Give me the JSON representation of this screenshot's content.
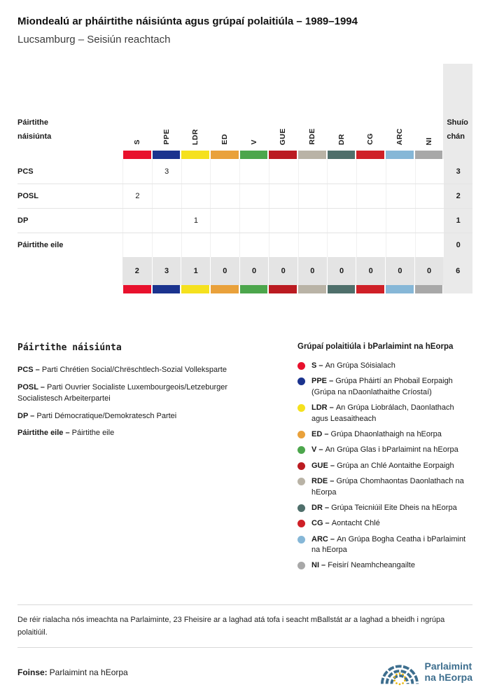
{
  "title": "Miondealú ar pháirtithe náisiúnta agus grúpaí polaitiúla – 1989–1994",
  "subtitle": "Lucsamburg – Seisiún reachtach",
  "table": {
    "row_header_label": "Páirtithe náisiúnta",
    "seats_label": "Shuío​chán",
    "groups": [
      {
        "code": "S",
        "color": "#e8112d",
        "name": "An Grúpa Sóisialach"
      },
      {
        "code": "PPE",
        "color": "#1b338e",
        "name": "Grúpa Pháirtí an Phobail Eorpaigh (Grúpa na nDaonlathaithe Críostaí)"
      },
      {
        "code": "LDR",
        "color": "#f5e11e",
        "name": "An Grúpa Liobrálach, Daonlathach agus Leasaitheach"
      },
      {
        "code": "ED",
        "color": "#e9a13b",
        "name": "Grúpa Dhaonlathaigh na hEorpa"
      },
      {
        "code": "V",
        "color": "#4ca64c",
        "name": "An Grúpa Glas i bParlaimint na hEorpa"
      },
      {
        "code": "GUE",
        "color": "#bb1b21",
        "name": "Grúpa an Chlé Aontaithe Eorpaigh"
      },
      {
        "code": "RDE",
        "color": "#b9b3a6",
        "name": "Grúpa Chomhaontas Daonlathach na hEorpa"
      },
      {
        "code": "DR",
        "color": "#4f6f6b",
        "name": "Grúpa Teicniúil Eite Dheis na hEorpa"
      },
      {
        "code": "CG",
        "color": "#cf2027",
        "name": "Aontacht Chlé"
      },
      {
        "code": "ARC",
        "color": "#86b7d7",
        "name": "An Grúpa Bogha Ceatha i bParlaimint na hEorpa"
      },
      {
        "code": "NI",
        "color": "#a8a8a8",
        "name": "Feisirí Neamhcheangailte"
      }
    ]
  },
  "chart_data": {
    "type": "table",
    "title": "Miondealú ar pháirtithe náisiúnta agus grúpaí polaitiúla – 1989–1994",
    "subtitle": "Lucsamburg – Seisiún reachtach",
    "columns": [
      "S",
      "PPE",
      "LDR",
      "ED",
      "V",
      "GUE",
      "RDE",
      "DR",
      "CG",
      "ARC",
      "NI"
    ],
    "seats_column": "Shuíochán",
    "rows": [
      {
        "label": "PCS",
        "values": [
          0,
          3,
          0,
          0,
          0,
          0,
          0,
          0,
          0,
          0,
          0
        ],
        "total": 3
      },
      {
        "label": "POSL",
        "values": [
          2,
          0,
          0,
          0,
          0,
          0,
          0,
          0,
          0,
          0,
          0
        ],
        "total": 2
      },
      {
        "label": "DP",
        "values": [
          0,
          0,
          1,
          0,
          0,
          0,
          0,
          0,
          0,
          0,
          0
        ],
        "total": 1
      },
      {
        "label": "Páirtithe eile",
        "values": [
          0,
          0,
          0,
          0,
          0,
          0,
          0,
          0,
          0,
          0,
          0
        ],
        "total": 0
      }
    ],
    "totals": [
      2,
      3,
      1,
      0,
      0,
      0,
      0,
      0,
      0,
      0,
      0
    ],
    "grand_total": 6
  },
  "legend_parties": {
    "heading": "Páirtithe náisiúnta",
    "items": [
      {
        "abbr": "PCS",
        "name": "Parti Chrétien Social/Chrëschtlech-Sozial Volleksparte"
      },
      {
        "abbr": "POSL",
        "name": "Parti Ouvrier Socialiste Luxembourgeois/Letzeburger Socialistesch Arbeiterpartei"
      },
      {
        "abbr": "DP",
        "name": "Parti Démocratique/Demokratesch Partei"
      },
      {
        "abbr": "Páirtithe eile",
        "name": "Páirtithe eile"
      }
    ]
  },
  "legend_groups": {
    "heading": "Grúpaí polaitiúla i bParlaimint na hEorpa"
  },
  "footnote": "De réir rialacha nós imeachta na Parlaiminte, 23 Fheisire ar a laghad atá tofa i seacht mBallstát ar a laghad a bheidh i ngrúpa polaitiúil.",
  "source": {
    "label": "Foinse:",
    "value": "Parlaimint na hEorpa"
  },
  "logo": {
    "line1": "Parlaimint",
    "line2": "na hEorpa",
    "color": "#3d6e8e",
    "star_color": "#e8b50a"
  }
}
